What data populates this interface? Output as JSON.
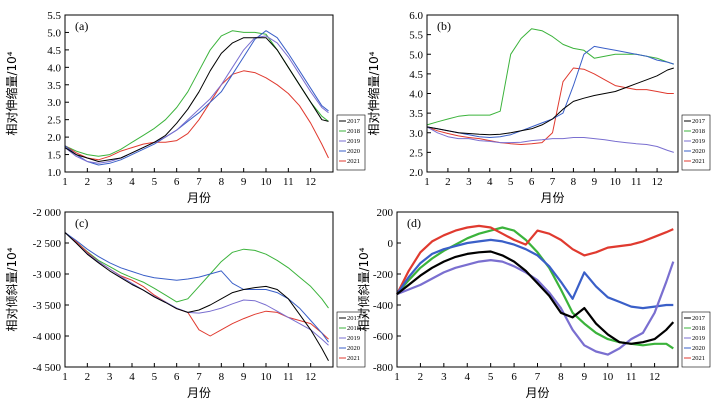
{
  "years": [
    "2017",
    "2018",
    "2019",
    "2020",
    "2021"
  ],
  "colors": {
    "2017": "#000000",
    "2018": "#3bb33b",
    "2019": "#7a6fd0",
    "2020": "#3a5fc8",
    "2021": "#e03a2f"
  },
  "chart_data": [
    {
      "panel": "(a)",
      "type": "line",
      "xlabel": "月份",
      "ylabel": "相对伸缩量/10⁴",
      "xlim": [
        1,
        13
      ],
      "ylim": [
        1.0,
        5.5
      ],
      "xticks": [
        "1",
        "2",
        "3",
        "4",
        "5",
        "6",
        "7",
        "8",
        "9",
        "10",
        "11",
        "12"
      ],
      "yticks": [
        "1.0",
        "1.5",
        "2.0",
        "2.5",
        "3.0",
        "3.5",
        "4.0",
        "4.5",
        "5.0",
        "5.5"
      ],
      "x": [
        1,
        1.5,
        2,
        2.5,
        3,
        3.5,
        4,
        4.5,
        5,
        5.5,
        6,
        6.5,
        7,
        7.5,
        8,
        8.5,
        9,
        9.5,
        10,
        10.5,
        11,
        11.5,
        12,
        12.5,
        12.8
      ],
      "series": [
        {
          "name": "2017",
          "values": [
            1.7,
            1.5,
            1.4,
            1.3,
            1.35,
            1.4,
            1.55,
            1.7,
            1.85,
            2.05,
            2.4,
            2.8,
            3.3,
            3.9,
            4.4,
            4.7,
            4.85,
            4.85,
            4.85,
            4.5,
            4.0,
            3.5,
            3.0,
            2.5,
            2.45
          ]
        },
        {
          "name": "2018",
          "values": [
            1.75,
            1.6,
            1.5,
            1.45,
            1.5,
            1.65,
            1.85,
            2.05,
            2.25,
            2.5,
            2.85,
            3.3,
            3.9,
            4.5,
            4.9,
            5.05,
            5.0,
            5.0,
            4.95,
            4.5,
            4.0,
            3.5,
            3.0,
            2.6,
            2.45
          ]
        },
        {
          "name": "2019",
          "values": [
            1.7,
            1.45,
            1.3,
            1.25,
            1.3,
            1.4,
            1.55,
            1.7,
            1.85,
            2.0,
            2.2,
            2.5,
            2.8,
            3.1,
            3.5,
            4.0,
            4.5,
            4.85,
            4.9,
            4.7,
            4.3,
            3.8,
            3.3,
            2.85,
            2.7
          ]
        },
        {
          "name": "2020",
          "values": [
            1.75,
            1.5,
            1.3,
            1.2,
            1.25,
            1.35,
            1.5,
            1.65,
            1.8,
            2.0,
            2.2,
            2.45,
            2.7,
            3.0,
            3.3,
            3.8,
            4.3,
            4.8,
            5.05,
            4.85,
            4.4,
            3.9,
            3.4,
            2.9,
            2.75
          ]
        },
        {
          "name": "2021",
          "values": [
            1.75,
            1.55,
            1.4,
            1.35,
            1.45,
            1.6,
            1.7,
            1.8,
            1.85,
            1.85,
            1.9,
            2.1,
            2.5,
            3.0,
            3.5,
            3.8,
            3.9,
            3.85,
            3.7,
            3.5,
            3.25,
            2.9,
            2.4,
            1.8,
            1.4
          ]
        }
      ]
    },
    {
      "panel": "(b)",
      "type": "line",
      "xlabel": "月份",
      "ylabel": "相对伸缩量/10⁴",
      "xlim": [
        1,
        13
      ],
      "ylim": [
        2.0,
        6.0
      ],
      "xticks": [
        "1",
        "2",
        "3",
        "4",
        "5",
        "6",
        "7",
        "8",
        "9",
        "10",
        "11",
        "12"
      ],
      "yticks": [
        "2.0",
        "2.5",
        "3.0",
        "3.5",
        "4.0",
        "4.5",
        "5.0",
        "5.5",
        "6.0"
      ],
      "x": [
        1,
        1.5,
        2,
        2.5,
        3,
        3.5,
        4,
        4.5,
        5,
        5.5,
        6,
        6.5,
        7,
        7.5,
        8,
        8.5,
        9,
        9.5,
        10,
        10.5,
        11,
        11.5,
        12,
        12.5,
        12.8
      ],
      "series": [
        {
          "name": "2017",
          "values": [
            3.15,
            3.1,
            3.05,
            3.0,
            2.98,
            2.96,
            2.95,
            2.96,
            3.0,
            3.05,
            3.1,
            3.2,
            3.35,
            3.6,
            3.8,
            3.88,
            3.95,
            4.0,
            4.05,
            4.15,
            4.25,
            4.35,
            4.45,
            4.6,
            4.65
          ]
        },
        {
          "name": "2018",
          "values": [
            3.2,
            3.28,
            3.35,
            3.42,
            3.45,
            3.45,
            3.45,
            3.55,
            5.0,
            5.4,
            5.65,
            5.6,
            5.45,
            5.25,
            5.15,
            5.1,
            4.9,
            4.95,
            5.0,
            5.0,
            5.0,
            4.95,
            4.9,
            4.8,
            4.75
          ]
        },
        {
          "name": "2019",
          "values": [
            3.15,
            3.0,
            2.9,
            2.85,
            2.85,
            2.8,
            2.78,
            2.75,
            2.75,
            2.76,
            2.8,
            2.82,
            2.85,
            2.85,
            2.88,
            2.88,
            2.85,
            2.82,
            2.78,
            2.75,
            2.72,
            2.7,
            2.65,
            2.55,
            2.5
          ]
        },
        {
          "name": "2020",
          "values": [
            3.15,
            3.1,
            3.05,
            3.0,
            2.95,
            2.9,
            2.88,
            2.9,
            2.95,
            3.05,
            3.15,
            3.25,
            3.35,
            3.5,
            4.2,
            5.0,
            5.2,
            5.15,
            5.1,
            5.05,
            5.0,
            4.95,
            4.85,
            4.8,
            4.75
          ]
        },
        {
          "name": "2021",
          "values": [
            3.15,
            3.05,
            2.98,
            2.92,
            2.88,
            2.85,
            2.8,
            2.75,
            2.72,
            2.7,
            2.72,
            2.75,
            3.0,
            4.3,
            4.65,
            4.62,
            4.5,
            4.35,
            4.2,
            4.15,
            4.1,
            4.1,
            4.05,
            4.0,
            4.0
          ]
        }
      ]
    },
    {
      "panel": "(c)",
      "type": "line",
      "xlabel": "月份",
      "ylabel": "相对倾斜量/10⁴",
      "xlim": [
        1,
        13
      ],
      "ylim": [
        -4500,
        -2000
      ],
      "xticks": [
        "1",
        "2",
        "3",
        "4",
        "5",
        "6",
        "7",
        "8",
        "9",
        "10",
        "11",
        "12"
      ],
      "yticks": [
        "-2 000",
        "-2 500",
        "-3 000",
        "-3 500",
        "-4 000",
        "-4 500"
      ],
      "x": [
        1,
        1.5,
        2,
        2.5,
        3,
        3.5,
        4,
        4.5,
        5,
        5.5,
        6,
        6.5,
        7,
        7.5,
        8,
        8.5,
        9,
        9.5,
        10,
        10.5,
        11,
        11.5,
        12,
        12.5,
        12.8
      ],
      "series": [
        {
          "name": "2017",
          "values": [
            -2330,
            -2500,
            -2680,
            -2820,
            -2950,
            -3060,
            -3170,
            -3260,
            -3370,
            -3460,
            -3560,
            -3620,
            -3580,
            -3500,
            -3400,
            -3300,
            -3250,
            -3220,
            -3200,
            -3250,
            -3400,
            -3650,
            -3900,
            -4200,
            -4400
          ]
        },
        {
          "name": "2018",
          "values": [
            -2330,
            -2480,
            -2640,
            -2780,
            -2880,
            -2980,
            -3060,
            -3130,
            -3230,
            -3340,
            -3450,
            -3400,
            -3200,
            -3000,
            -2800,
            -2650,
            -2600,
            -2620,
            -2680,
            -2780,
            -2900,
            -3050,
            -3200,
            -3400,
            -3550
          ]
        },
        {
          "name": "2019",
          "values": [
            -2330,
            -2500,
            -2670,
            -2800,
            -2920,
            -3040,
            -3150,
            -3260,
            -3360,
            -3450,
            -3550,
            -3620,
            -3630,
            -3600,
            -3550,
            -3480,
            -3420,
            -3430,
            -3500,
            -3600,
            -3700,
            -3800,
            -3900,
            -4050,
            -4150
          ]
        },
        {
          "name": "2020",
          "values": [
            -2330,
            -2460,
            -2600,
            -2720,
            -2820,
            -2900,
            -2960,
            -3020,
            -3060,
            -3080,
            -3100,
            -3080,
            -3050,
            -3000,
            -2950,
            -3150,
            -3250,
            -3250,
            -3250,
            -3300,
            -3400,
            -3550,
            -3750,
            -3950,
            -4100
          ]
        },
        {
          "name": "2021",
          "values": [
            -2330,
            -2480,
            -2650,
            -2800,
            -2920,
            -3030,
            -3100,
            -3200,
            -3340,
            -3450,
            -3560,
            -3620,
            -3900,
            -4000,
            -3900,
            -3800,
            -3720,
            -3650,
            -3600,
            -3620,
            -3700,
            -3750,
            -3800,
            -3950,
            -4050
          ]
        }
      ]
    },
    {
      "panel": "(d)",
      "type": "line",
      "xlabel": "月份",
      "ylabel": "相对倾斜量/10⁴",
      "xlim": [
        1,
        13
      ],
      "ylim": [
        -800,
        200
      ],
      "xticks": [
        "1",
        "2",
        "3",
        "4",
        "5",
        "6",
        "7",
        "8",
        "9",
        "10",
        "11",
        "12"
      ],
      "yticks": [
        "200",
        "0",
        "-200",
        "-400",
        "-600",
        "-800"
      ],
      "x": [
        1,
        1.5,
        2,
        2.5,
        3,
        3.5,
        4,
        4.5,
        5,
        5.5,
        6,
        6.5,
        7,
        7.5,
        8,
        8.5,
        9,
        9.5,
        10,
        10.5,
        11,
        11.5,
        12,
        12.5,
        12.8
      ],
      "series": [
        {
          "name": "2017",
          "values": [
            -330,
            -270,
            -210,
            -160,
            -120,
            -90,
            -70,
            -60,
            -55,
            -80,
            -120,
            -180,
            -260,
            -340,
            -450,
            -480,
            -420,
            -520,
            -590,
            -640,
            -650,
            -640,
            -620,
            -560,
            -510
          ]
        },
        {
          "name": "2018",
          "values": [
            -330,
            -240,
            -160,
            -100,
            -50,
            -10,
            30,
            60,
            80,
            100,
            80,
            20,
            -60,
            -160,
            -300,
            -450,
            -520,
            -580,
            -620,
            -640,
            -650,
            -660,
            -650,
            -650,
            -680
          ]
        },
        {
          "name": "2019",
          "values": [
            -330,
            -300,
            -270,
            -230,
            -190,
            -160,
            -140,
            -120,
            -110,
            -120,
            -150,
            -190,
            -240,
            -320,
            -420,
            -560,
            -660,
            -700,
            -720,
            -680,
            -620,
            -580,
            -450,
            -250,
            -120
          ]
        },
        {
          "name": "2020",
          "values": [
            -330,
            -220,
            -130,
            -70,
            -40,
            -20,
            0,
            10,
            20,
            10,
            -10,
            -40,
            -80,
            -150,
            -250,
            -360,
            -190,
            -280,
            -350,
            -380,
            -410,
            -420,
            -410,
            -400,
            -400
          ]
        },
        {
          "name": "2021",
          "values": [
            -330,
            -180,
            -60,
            10,
            50,
            80,
            100,
            110,
            100,
            60,
            20,
            -10,
            80,
            60,
            20,
            -40,
            -80,
            -60,
            -30,
            -20,
            -10,
            10,
            40,
            70,
            90
          ]
        }
      ]
    }
  ]
}
